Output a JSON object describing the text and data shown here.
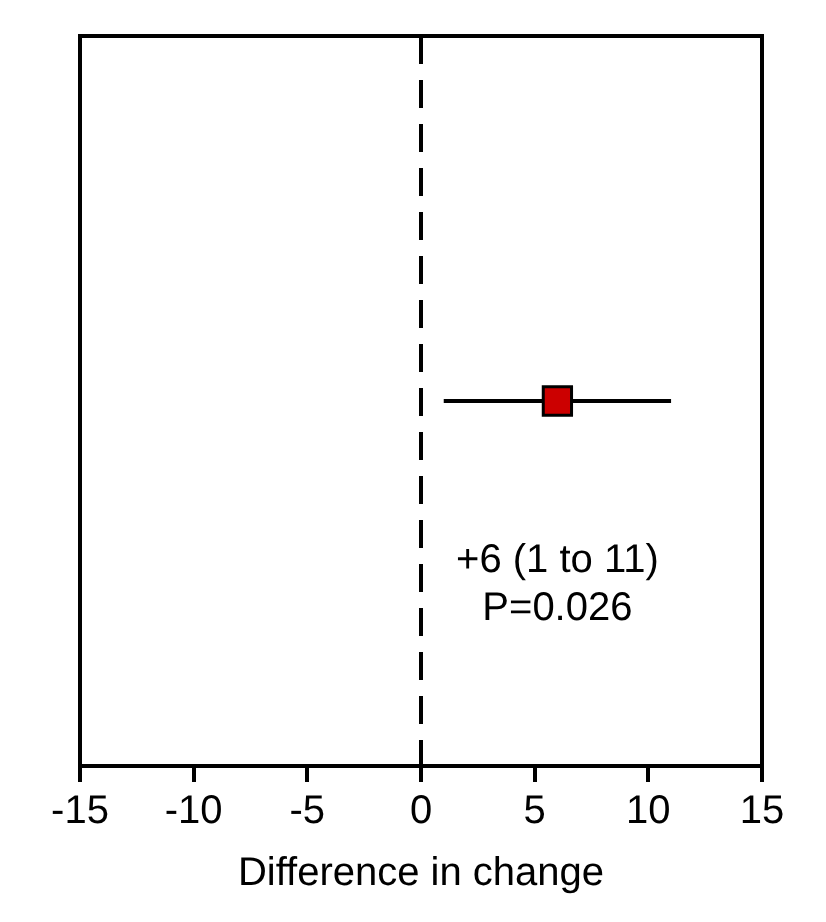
{
  "chart_data": {
    "type": "scatter",
    "orientation": "horizontal",
    "xlabel": "Difference in change",
    "categories": [
      null
    ],
    "values": [
      6
    ],
    "errors": [
      [
        1,
        11
      ]
    ],
    "color": "#cc0000",
    "marker": "square",
    "xlim": [
      -15,
      15
    ],
    "xticks": [
      -15,
      -10,
      -5,
      0,
      5,
      10,
      15
    ],
    "ref_lines": [
      {
        "axis": "x",
        "value": 0,
        "line_style": "dashed",
        "color": "#000000"
      }
    ],
    "annotations": [
      "+6 (1 to 11)",
      "P=0.026"
    ]
  }
}
